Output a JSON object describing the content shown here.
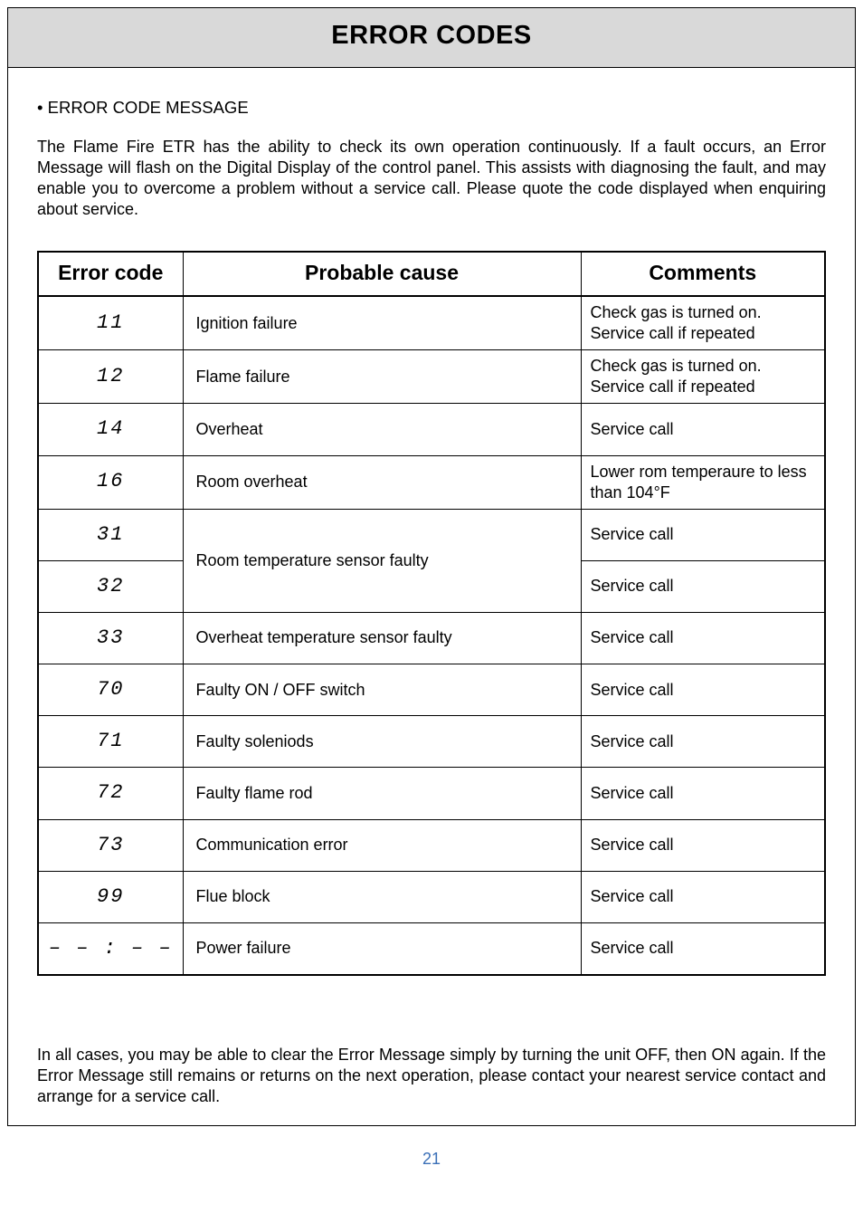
{
  "title": "ERROR CODES",
  "section_bullet": "•   ERROR CODE MESSAGE",
  "intro": "The Flame Fire ETR has the ability to check its own operation continuously. If a fault occurs, an Error Message will flash on the Digital Display of the control panel. This assists with diagnosing the fault, and may enable you to overcome a problem without a service call. Please quote the code displayed when enquiring about service.",
  "headers": {
    "code": "Error code",
    "cause": "Probable cause",
    "comments": "Comments"
  },
  "rows": [
    {
      "code": "11",
      "cause": "Ignition failure",
      "comment": "Check gas is turned on. Service call if repeated",
      "tall": false,
      "span": 1
    },
    {
      "code": "12",
      "cause": "Flame failure",
      "comment": "Check gas is turned on. Service call if repeated",
      "tall": false,
      "span": 1
    },
    {
      "code": "14",
      "cause": "Overheat",
      "comment": "Service call",
      "tall": true,
      "span": 1
    },
    {
      "code": "16",
      "cause": "Room overheat",
      "comment": "Lower rom temperaure to less than 104°F",
      "tall": true,
      "span": 1
    },
    {
      "code": "31",
      "cause": "Room temperature sensor faulty",
      "comment": "Service call",
      "tall": true,
      "span": 2
    },
    {
      "code": "32",
      "cause": null,
      "comment": "Service call",
      "tall": true,
      "span": 0
    },
    {
      "code": "33",
      "cause": "Overheat temperature sensor faulty",
      "comment": "Service call",
      "tall": true,
      "span": 1
    },
    {
      "code": "70",
      "cause": "Faulty ON / OFF switch",
      "comment": "Service call",
      "tall": true,
      "span": 1
    },
    {
      "code": "71",
      "cause": "Faulty soleniods",
      "comment": "Service call",
      "tall": true,
      "span": 1
    },
    {
      "code": "72",
      "cause": "Faulty flame rod",
      "comment": "Service call",
      "tall": true,
      "span": 1
    },
    {
      "code": "73",
      "cause": "Communication error",
      "comment": "Service call",
      "tall": true,
      "span": 1
    },
    {
      "code": "99",
      "cause": "Flue block",
      "comment": "Service call",
      "tall": true,
      "span": 1
    },
    {
      "code": "– – : – –",
      "cause": "Power failure",
      "comment": "Service call",
      "tall": false,
      "span": 1
    }
  ],
  "outro": "In all cases, you may be able to clear the Error Message simply by turning the unit OFF, then ON again. If the Error Message still remains or returns on the next operation, please contact your nearest service contact and arrange for a service call.",
  "page_number": "21",
  "colors": {
    "band_bg": "#d9d9d9",
    "border": "#000000",
    "text": "#000000",
    "pagenum": "#3a6fb7"
  }
}
